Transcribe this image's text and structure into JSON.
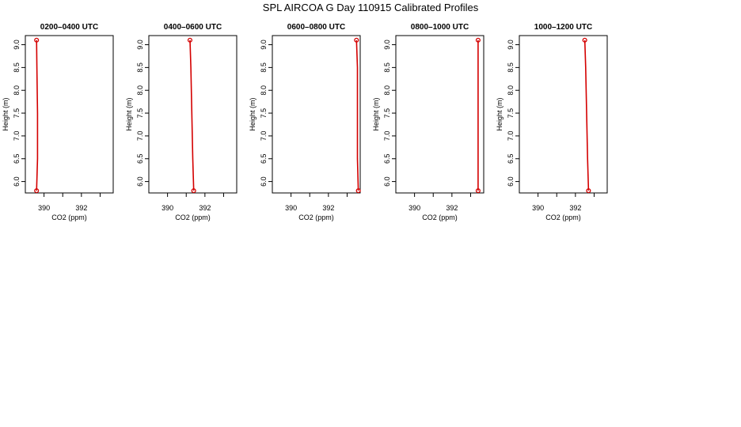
{
  "title": "SPL AIRCOA G  Day 110915  Calibrated Profiles",
  "colors": {
    "profile": "#d40000",
    "axis": "#000000"
  },
  "chart_data": [
    {
      "type": "line",
      "title": "0200–0400 UTC",
      "xlabel": "CO2 (ppm)",
      "ylabel": "Height (m)",
      "xlim": [
        389.0,
        393.7
      ],
      "ylim": [
        5.75,
        9.2
      ],
      "xticks": [
        390,
        391,
        392,
        393
      ],
      "xtick_labels": [
        "390",
        "",
        "392",
        ""
      ],
      "yticks": [
        6.0,
        6.5,
        7.0,
        7.5,
        8.0,
        8.5,
        9.0
      ],
      "ytick_labels": [
        "6.0",
        "6.5",
        "7.0",
        "7.5",
        "8.0",
        "8.5",
        "9.0"
      ],
      "series": [
        {
          "x": [
            389.6,
            389.65,
            389.65,
            389.62,
            389.6
          ],
          "y": [
            5.8,
            6.5,
            7.5,
            8.5,
            9.1
          ]
        }
      ],
      "markers": [
        {
          "x": 389.6,
          "y": 5.8
        },
        {
          "x": 389.6,
          "y": 9.1
        }
      ]
    },
    {
      "type": "line",
      "title": "0400–0600 UTC",
      "xlabel": "CO2 (ppm)",
      "ylabel": "Height (m)",
      "xlim": [
        389.0,
        393.7
      ],
      "ylim": [
        5.75,
        9.2
      ],
      "xticks": [
        390,
        391,
        392,
        393
      ],
      "xtick_labels": [
        "390",
        "",
        "392",
        ""
      ],
      "yticks": [
        6.0,
        6.5,
        7.0,
        7.5,
        8.0,
        8.5,
        9.0
      ],
      "ytick_labels": [
        "6.0",
        "6.5",
        "7.0",
        "7.5",
        "8.0",
        "8.5",
        "9.0"
      ],
      "series": [
        {
          "x": [
            391.4,
            391.35,
            391.3,
            391.25,
            391.2
          ],
          "y": [
            5.8,
            6.5,
            7.5,
            8.5,
            9.1
          ]
        }
      ],
      "markers": [
        {
          "x": 391.4,
          "y": 5.8
        },
        {
          "x": 391.2,
          "y": 9.1
        }
      ]
    },
    {
      "type": "line",
      "title": "0600–0800 UTC",
      "xlabel": "CO2 (ppm)",
      "ylabel": "Height (m)",
      "xlim": [
        389.0,
        393.7
      ],
      "ylim": [
        5.75,
        9.2
      ],
      "xticks": [
        390,
        391,
        392,
        393
      ],
      "xtick_labels": [
        "390",
        "",
        "392",
        ""
      ],
      "yticks": [
        6.0,
        6.5,
        7.0,
        7.5,
        8.0,
        8.5,
        9.0
      ],
      "ytick_labels": [
        "6.0",
        "6.5",
        "7.0",
        "7.5",
        "8.0",
        "8.5",
        "9.0"
      ],
      "series": [
        {
          "x": [
            393.6,
            393.55,
            393.55,
            393.55,
            393.5
          ],
          "y": [
            5.8,
            6.5,
            7.5,
            8.5,
            9.1
          ]
        }
      ],
      "markers": [
        {
          "x": 393.6,
          "y": 5.8
        },
        {
          "x": 393.5,
          "y": 9.1
        }
      ]
    },
    {
      "type": "line",
      "title": "0800–1000 UTC",
      "xlabel": "CO2 (ppm)",
      "ylabel": "Height (m)",
      "xlim": [
        389.0,
        393.7
      ],
      "ylim": [
        5.75,
        9.2
      ],
      "xticks": [
        390,
        391,
        392,
        393
      ],
      "xtick_labels": [
        "390",
        "",
        "392",
        ""
      ],
      "yticks": [
        6.0,
        6.5,
        7.0,
        7.5,
        8.0,
        8.5,
        9.0
      ],
      "ytick_labels": [
        "6.0",
        "6.5",
        "7.0",
        "7.5",
        "8.0",
        "8.5",
        "9.0"
      ],
      "series": [
        {
          "x": [
            393.4,
            393.4,
            393.4,
            393.4,
            393.4
          ],
          "y": [
            5.8,
            6.5,
            7.5,
            8.5,
            9.1
          ]
        }
      ],
      "markers": [
        {
          "x": 393.4,
          "y": 5.8
        },
        {
          "x": 393.4,
          "y": 9.1
        }
      ]
    },
    {
      "type": "line",
      "title": "1000–1200 UTC",
      "xlabel": "CO2 (ppm)",
      "ylabel": "Height (m)",
      "xlim": [
        389.0,
        393.7
      ],
      "ylim": [
        5.75,
        9.2
      ],
      "xticks": [
        390,
        391,
        392,
        393
      ],
      "xtick_labels": [
        "390",
        "",
        "392",
        ""
      ],
      "yticks": [
        6.0,
        6.5,
        7.0,
        7.5,
        8.0,
        8.5,
        9.0
      ],
      "ytick_labels": [
        "6.0",
        "6.5",
        "7.0",
        "7.5",
        "8.0",
        "8.5",
        "9.0"
      ],
      "series": [
        {
          "x": [
            392.7,
            392.65,
            392.6,
            392.55,
            392.5
          ],
          "y": [
            5.8,
            6.5,
            7.5,
            8.5,
            9.1
          ]
        }
      ],
      "markers": [
        {
          "x": 392.7,
          "y": 5.8
        },
        {
          "x": 392.5,
          "y": 9.1
        }
      ]
    }
  ]
}
